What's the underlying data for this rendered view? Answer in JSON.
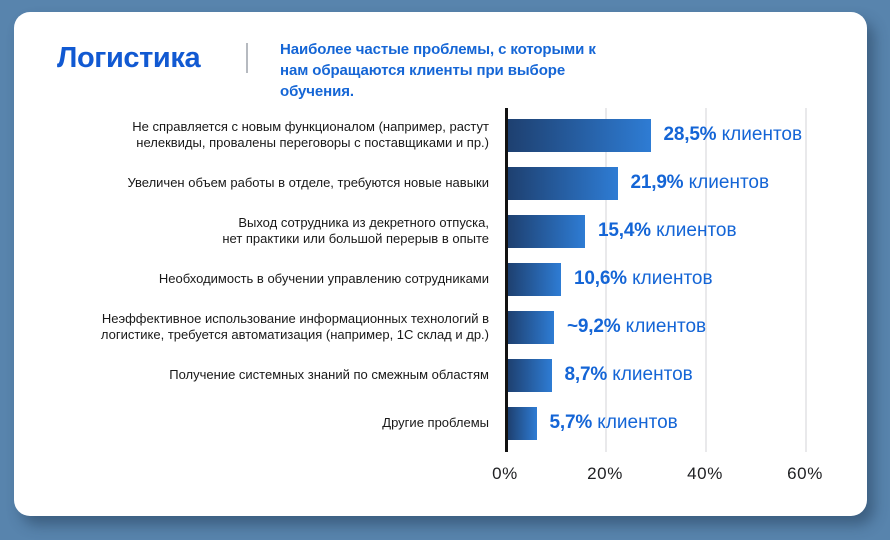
{
  "header": {
    "title": "Логистика",
    "subtitle": "Наиболее частые проблемы, с которыми к нам обращаются клиенты при выборе обучения."
  },
  "chart_data": {
    "type": "bar",
    "orientation": "horizontal",
    "title": "Наиболее частые проблемы, с которыми к нам обращаются клиенты при выборе обучения.",
    "categories": [
      "Не справляется с новым функционалом (например, растут\nнелеквиды, провалены переговоры с поставщиками и пр.)",
      "Увеличен объем работы в отделе, требуются новые навыки",
      "Выход сотрудника из декретного отпуска,\nнет практики или большой перерыв в опыте",
      "Необходимость в обучении управлению сотрудниками",
      "Неэффективное использование информационных технологий в\nлогистике, требуется автоматизация (например, 1С склад и др.)",
      "Получение системных знаний по смежным областям",
      "Другие проблемы"
    ],
    "values": [
      28.5,
      21.9,
      15.4,
      10.6,
      9.2,
      8.7,
      5.7
    ],
    "value_labels": [
      {
        "pct": "28,5%",
        "suffix": " клиентов"
      },
      {
        "pct": "21,9%",
        "suffix": " клиентов"
      },
      {
        "pct": "15,4%",
        "suffix": " клиентов"
      },
      {
        "pct": "10,6%",
        "suffix": " клиентов"
      },
      {
        "pct": "~9,2%",
        "suffix": " клиентов"
      },
      {
        "pct": "8,7%",
        "suffix": " клиентов"
      },
      {
        "pct": "5,7%",
        "suffix": " клиентов"
      }
    ],
    "x_ticks": [
      "0%",
      "20%",
      "40%",
      "60%"
    ],
    "xlim": [
      0,
      68
    ],
    "grid": true,
    "legend": false,
    "bar_gradient": [
      "#1E4070",
      "#2E7CD4"
    ],
    "value_color": "#1465D6"
  },
  "layout_colors": {
    "frame": "#5884AD",
    "card": "#FFFFFF",
    "title": "#1159D2",
    "subtitle": "#1566D6",
    "axis_line": "#121212",
    "gridline": "#E9E9EB"
  }
}
